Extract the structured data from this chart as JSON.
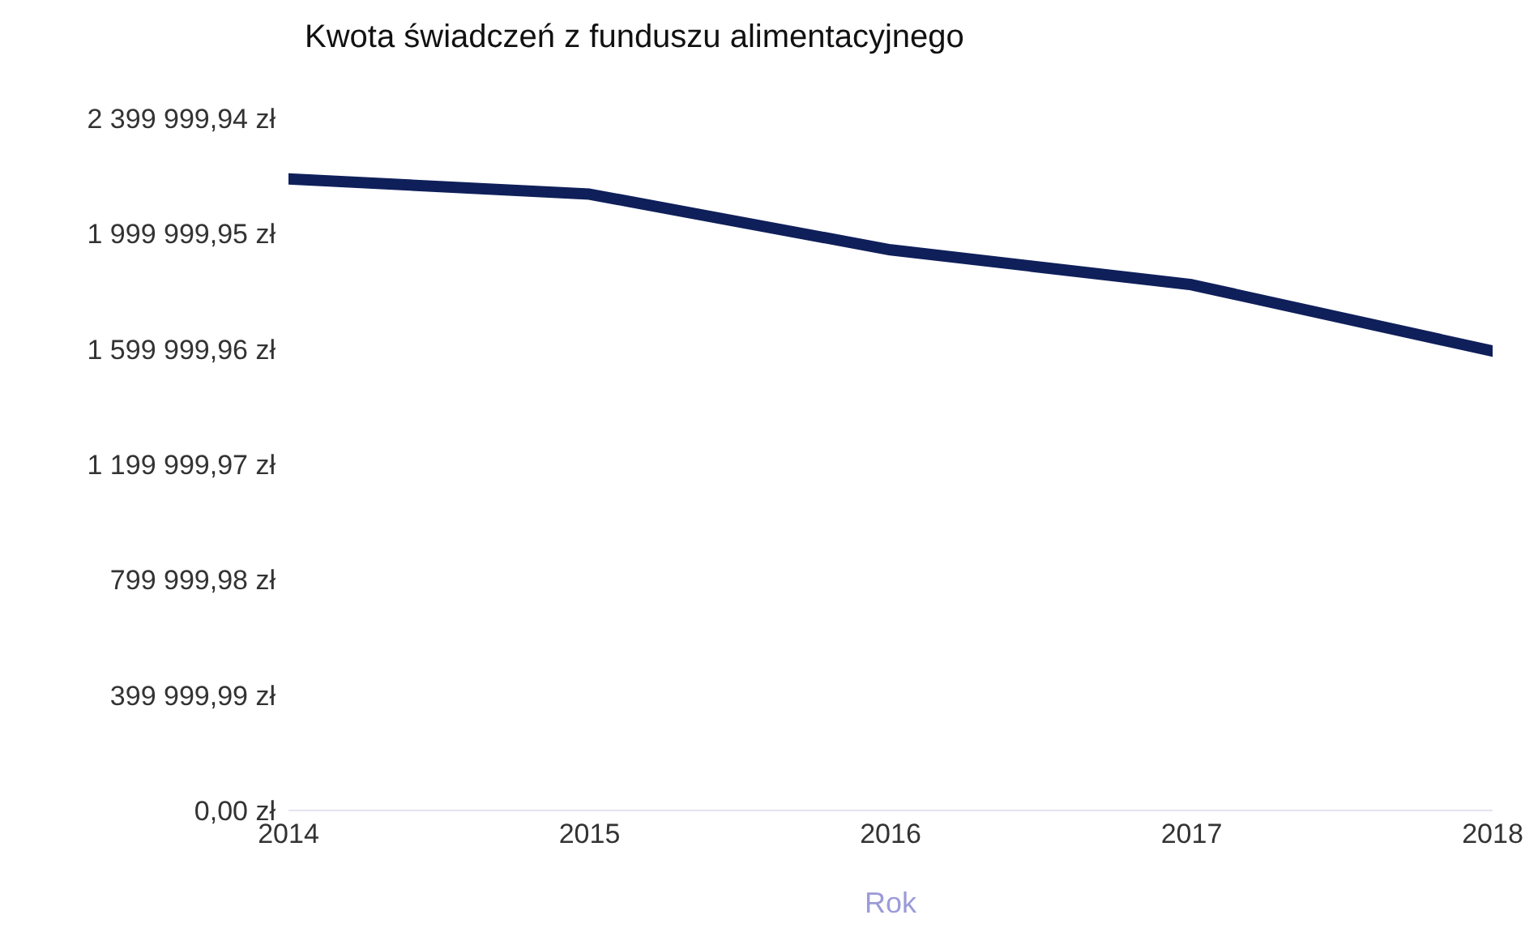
{
  "chart_data": {
    "type": "line",
    "title": "Kwota świadczeń z funduszu alimentacyjnego",
    "xlabel": "Rok",
    "x": [
      2014,
      2015,
      2016,
      2017,
      2018
    ],
    "series": [
      {
        "color": "#0f1f5a",
        "values": [
          2190000,
          2137000,
          1944000,
          1823000,
          1593000
        ]
      }
    ],
    "xlim": [
      2014,
      2018
    ],
    "xticks": [
      2014,
      2015,
      2016,
      2017,
      2018
    ],
    "ylim": [
      0,
      2399999.94
    ],
    "yticks": [
      {
        "value": 0,
        "label": "0,00 zł"
      },
      {
        "value": 399999.99,
        "label": "399 999,99 zł"
      },
      {
        "value": 799999.98,
        "label": "799 999,98 zł"
      },
      {
        "value": 1199999.97,
        "label": "1 199 999,97 zł"
      },
      {
        "value": 1599999.96,
        "label": "1 599 999,96 zł"
      },
      {
        "value": 1999999.95,
        "label": "1 999 999,95 zł"
      },
      {
        "value": 2399999.94,
        "label": "2 399 999,94 zł"
      }
    ],
    "grid": false,
    "legend": false,
    "marker": "none",
    "line_style": "solid"
  }
}
